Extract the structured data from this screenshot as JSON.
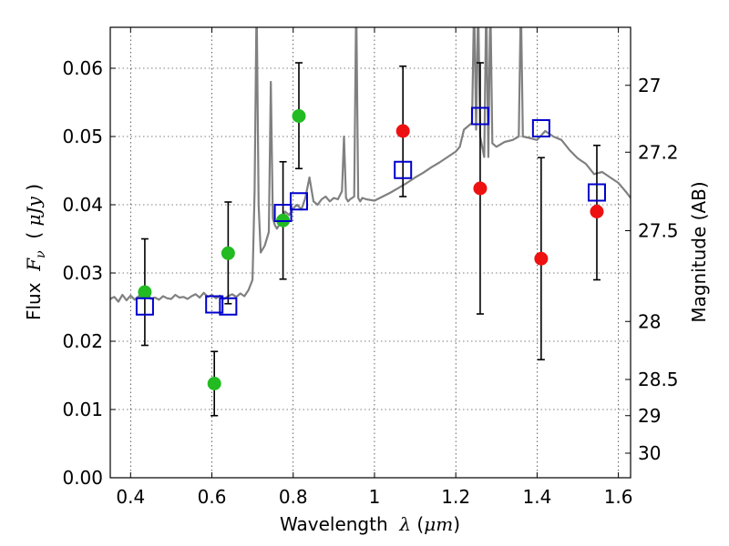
{
  "chart_data": {
    "type": "scatter",
    "xlabel": {
      "prefix": "Wavelength  ",
      "symbol": "λ",
      "unit_open": " (",
      "unit": "μm",
      "unit_close": ")"
    },
    "ylabel": {
      "prefix": "Flux  ",
      "symbol": "F",
      "subscript": "ν",
      "unit_open": "  ( ",
      "unit": "μJy",
      "unit_close": " )"
    },
    "y2label": "Magnitude (AB)",
    "xlim": [
      0.35,
      1.63
    ],
    "ylim": [
      0.0,
      0.066
    ],
    "grid": true,
    "x_ticks": [
      0.4,
      0.6,
      0.8,
      1.0,
      1.2,
      1.4,
      1.6
    ],
    "x_tick_labels": [
      "0.4",
      "0.6",
      "0.8",
      "1",
      "1.2",
      "1.4",
      "1.6"
    ],
    "y_ticks": [
      0.0,
      0.01,
      0.02,
      0.03,
      0.04,
      0.05,
      0.06
    ],
    "y_tick_labels": [
      "0.00",
      "0.01",
      "0.02",
      "0.03",
      "0.04",
      "0.05",
      "0.06"
    ],
    "y2_ticks": [
      {
        "label": "27",
        "flux": 0.0575
      },
      {
        "label": "27.2",
        "flux": 0.0477
      },
      {
        "label": "27.5",
        "flux": 0.0362
      },
      {
        "label": "28",
        "flux": 0.0229
      },
      {
        "label": "28.5",
        "flux": 0.0144
      },
      {
        "label": "29",
        "flux": 0.0091
      },
      {
        "label": "30",
        "flux": 0.0036
      }
    ],
    "series": [
      {
        "marker": "circle",
        "color": "#22bb22",
        "points": [
          {
            "x": 0.435,
            "y": 0.0272
          },
          {
            "x": 0.606,
            "y": 0.0138
          },
          {
            "x": 0.64,
            "y": 0.0329
          },
          {
            "x": 0.775,
            "y": 0.0377
          },
          {
            "x": 0.814,
            "y": 0.053
          }
        ]
      },
      {
        "marker": "circle",
        "color": "#ee1111",
        "points": [
          {
            "x": 1.07,
            "y": 0.0508
          },
          {
            "x": 1.26,
            "y": 0.0424
          },
          {
            "x": 1.41,
            "y": 0.0321
          },
          {
            "x": 1.547,
            "y": 0.039
          }
        ]
      },
      {
        "marker": "open-square",
        "color": "#0000cc",
        "points": [
          {
            "x": 0.435,
            "y": 0.0251
          },
          {
            "x": 0.606,
            "y": 0.0254
          },
          {
            "x": 0.64,
            "y": 0.0251
          },
          {
            "x": 0.775,
            "y": 0.0388
          },
          {
            "x": 0.814,
            "y": 0.0405
          },
          {
            "x": 1.07,
            "y": 0.0451
          },
          {
            "x": 1.26,
            "y": 0.053
          },
          {
            "x": 1.41,
            "y": 0.0512
          },
          {
            "x": 1.547,
            "y": 0.0418
          }
        ]
      }
    ],
    "error_bars": [
      {
        "x": 0.435,
        "ylo": 0.0194,
        "yhi": 0.035
      },
      {
        "x": 0.606,
        "ylo": 0.0091,
        "yhi": 0.0185
      },
      {
        "x": 0.64,
        "ylo": 0.0255,
        "yhi": 0.0404
      },
      {
        "x": 0.775,
        "ylo": 0.0291,
        "yhi": 0.0463
      },
      {
        "x": 0.814,
        "ylo": 0.0453,
        "yhi": 0.0608
      },
      {
        "x": 1.07,
        "ylo": 0.0412,
        "yhi": 0.0603
      },
      {
        "x": 1.26,
        "ylo": 0.024,
        "yhi": 0.0608
      },
      {
        "x": 1.41,
        "ylo": 0.0173,
        "yhi": 0.0469
      },
      {
        "x": 1.547,
        "ylo": 0.029,
        "yhi": 0.0487
      }
    ],
    "spectrum": {
      "color": "#808080",
      "x": [
        0.35,
        0.36,
        0.37,
        0.38,
        0.39,
        0.4,
        0.41,
        0.42,
        0.43,
        0.44,
        0.45,
        0.46,
        0.47,
        0.48,
        0.49,
        0.5,
        0.51,
        0.52,
        0.53,
        0.54,
        0.55,
        0.56,
        0.57,
        0.58,
        0.59,
        0.6,
        0.61,
        0.62,
        0.63,
        0.64,
        0.65,
        0.66,
        0.67,
        0.68,
        0.69,
        0.7,
        0.705,
        0.71,
        0.715,
        0.72,
        0.73,
        0.74,
        0.745,
        0.75,
        0.755,
        0.76,
        0.77,
        0.78,
        0.79,
        0.8,
        0.81,
        0.82,
        0.83,
        0.84,
        0.85,
        0.86,
        0.87,
        0.88,
        0.89,
        0.9,
        0.91,
        0.92,
        0.925,
        0.93,
        0.935,
        0.94,
        0.95,
        0.955,
        0.96,
        0.965,
        0.97,
        0.98,
        1.0,
        1.02,
        1.04,
        1.06,
        1.08,
        1.1,
        1.12,
        1.14,
        1.16,
        1.18,
        1.2,
        1.21,
        1.22,
        1.24,
        1.245,
        1.25,
        1.255,
        1.26,
        1.27,
        1.275,
        1.28,
        1.285,
        1.29,
        1.3,
        1.32,
        1.34,
        1.355,
        1.36,
        1.365,
        1.38,
        1.4,
        1.42,
        1.44,
        1.46,
        1.48,
        1.5,
        1.52,
        1.54,
        1.56,
        1.58,
        1.6,
        1.61,
        1.62,
        1.63
      ],
      "y": [
        0.0262,
        0.0265,
        0.0258,
        0.0268,
        0.026,
        0.0267,
        0.0261,
        0.0266,
        0.0263,
        0.0272,
        0.0262,
        0.0264,
        0.0261,
        0.0266,
        0.0263,
        0.0262,
        0.0268,
        0.0264,
        0.0265,
        0.0262,
        0.0266,
        0.0269,
        0.0264,
        0.0271,
        0.0265,
        0.0268,
        0.0263,
        0.0267,
        0.0262,
        0.0266,
        0.0269,
        0.0265,
        0.027,
        0.0266,
        0.0275,
        0.029,
        0.042,
        0.07,
        0.04,
        0.033,
        0.034,
        0.036,
        0.058,
        0.038,
        0.037,
        0.0365,
        0.0375,
        0.039,
        0.0385,
        0.0395,
        0.04,
        0.0393,
        0.041,
        0.044,
        0.0405,
        0.04,
        0.0408,
        0.0412,
        0.0405,
        0.041,
        0.0408,
        0.042,
        0.05,
        0.041,
        0.0405,
        0.0408,
        0.0412,
        0.07,
        0.041,
        0.0405,
        0.041,
        0.0408,
        0.0406,
        0.0412,
        0.0418,
        0.0425,
        0.0432,
        0.044,
        0.0447,
        0.0455,
        0.0462,
        0.047,
        0.0478,
        0.0485,
        0.051,
        0.052,
        0.07,
        0.051,
        0.07,
        0.05,
        0.047,
        0.07,
        0.047,
        0.07,
        0.049,
        0.0485,
        0.0492,
        0.0495,
        0.05,
        0.07,
        0.05,
        0.0498,
        0.0495,
        0.0508,
        0.05,
        0.0495,
        0.048,
        0.0468,
        0.046,
        0.0445,
        0.0448,
        0.044,
        0.0432,
        0.0425,
        0.0418,
        0.041
      ]
    }
  }
}
